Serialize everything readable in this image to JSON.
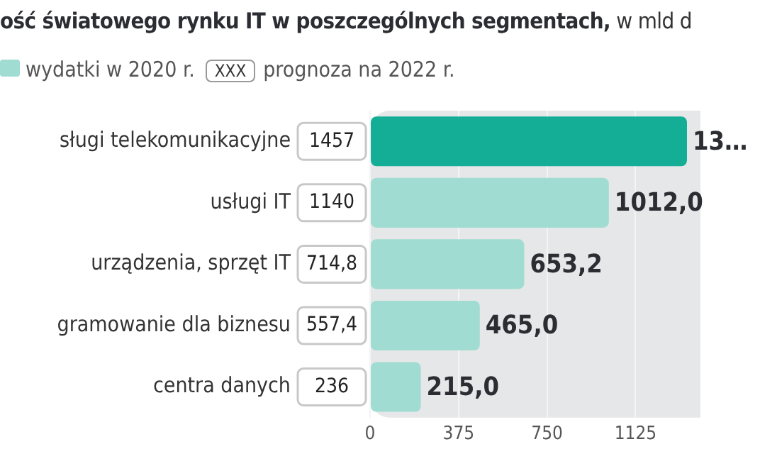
{
  "chart_data": {
    "type": "bar",
    "orientation": "horizontal",
    "title": "ość światowego rynku IT w poszczególnych segmentach,",
    "subtitle": "w mld d",
    "categories": [
      "sługi telekomunikacyjne",
      "usługi IT",
      "urządzenia, sprzęt IT",
      "gramowanie dla biznesu",
      "centra danych"
    ],
    "series": [
      {
        "name": "wydatki w  2020 r.",
        "color": "#a0dcd2",
        "colors": [
          "#14ae96",
          "#a0dcd2",
          "#a0dcd2",
          "#a0dcd2",
          "#a0dcd2"
        ],
        "values": [
          1343,
          1012.0,
          653.2,
          465.0,
          215.0
        ],
        "value_labels": [
          "13…",
          "1012,0",
          "653,2",
          "465,0",
          "215,0"
        ]
      }
    ],
    "annotations": [
      "XXX",
      "prognoza na 2022 r.",
      "1457",
      "1140",
      "714,8",
      "557,4",
      "236"
    ],
    "xlim": [
      0,
      1400
    ],
    "xticks": [
      0,
      375,
      750,
      1125
    ],
    "grid": "x",
    "legend": "top left"
  }
}
